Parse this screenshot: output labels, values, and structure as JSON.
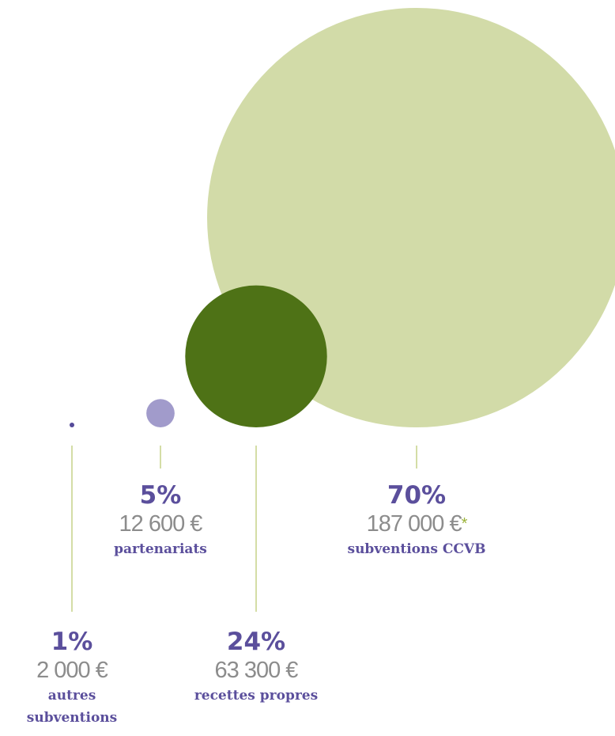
{
  "chart_data": {
    "type": "bubble",
    "categories": [
      "autres subventions",
      "partenariats",
      "recettes propres",
      "subventions CCVB"
    ],
    "values": [
      2000,
      12600,
      63300,
      187000
    ],
    "value_labels": [
      "2 000 €",
      "12 600 €",
      "63 300 €",
      "187 000 €"
    ],
    "shares": [
      1,
      5,
      24,
      70
    ],
    "share_labels": [
      "1%",
      "5%",
      "24%",
      "70%"
    ],
    "colors": [
      "#554a99",
      "#a19bcb",
      "#4e7216",
      "#d2dba8"
    ],
    "footnote_mark": "*"
  }
}
